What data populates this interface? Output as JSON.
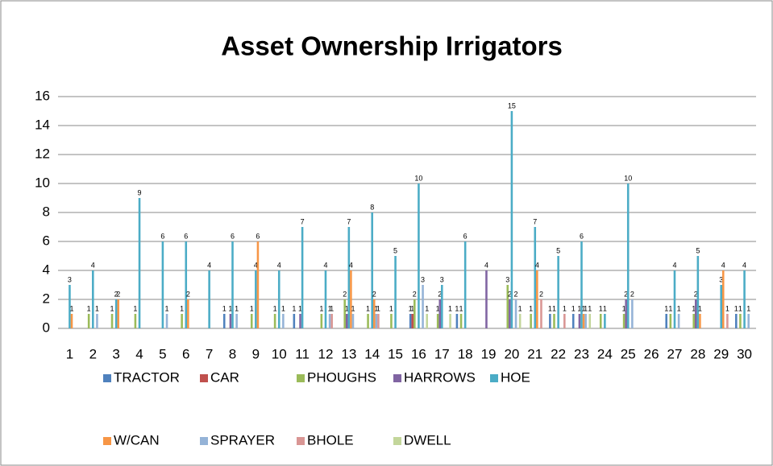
{
  "chart_data": {
    "type": "bar",
    "title": "Asset Ownership Irrigators",
    "categories": [
      "1",
      "2",
      "3",
      "4",
      "5",
      "6",
      "7",
      "8",
      "9",
      "10",
      "11",
      "12",
      "13",
      "14",
      "15",
      "16",
      "17",
      "18",
      "19",
      "20",
      "21",
      "22",
      "23",
      "24",
      "25",
      "26",
      "27",
      "28",
      "29",
      "30"
    ],
    "series": [
      {
        "name": "TRACTOR",
        "color": "#4f81bd",
        "values": [
          0,
          0,
          0,
          0,
          0,
          0,
          0,
          1,
          0,
          0,
          1,
          0,
          0,
          0,
          0,
          1,
          0,
          1,
          0,
          0,
          0,
          1,
          1,
          0,
          0,
          0,
          1,
          0,
          0,
          1
        ]
      },
      {
        "name": "CAR",
        "color": "#c0504d",
        "values": [
          0,
          0,
          0,
          0,
          0,
          0,
          0,
          0,
          0,
          0,
          0,
          0,
          0,
          0,
          0,
          1,
          0,
          0,
          0,
          0,
          0,
          0,
          0,
          0,
          0,
          0,
          0,
          0,
          0,
          0
        ]
      },
      {
        "name": "PHOUGHS",
        "color": "#9bbb59",
        "values": [
          0,
          1,
          1,
          1,
          0,
          1,
          0,
          0,
          1,
          1,
          0,
          1,
          2,
          1,
          1,
          2,
          1,
          1,
          0,
          3,
          1,
          1,
          0,
          1,
          1,
          0,
          1,
          1,
          0,
          1
        ]
      },
      {
        "name": "HARROWS",
        "color": "#8064a2",
        "values": [
          0,
          0,
          0,
          0,
          0,
          0,
          0,
          1,
          0,
          0,
          1,
          0,
          1,
          0,
          0,
          0,
          2,
          0,
          4,
          2,
          0,
          0,
          1,
          0,
          2,
          0,
          0,
          2,
          0,
          0
        ]
      },
      {
        "name": "HOE",
        "color": "#4bacc6",
        "values": [
          3,
          4,
          2,
          9,
          6,
          6,
          4,
          6,
          4,
          4,
          7,
          4,
          7,
          8,
          5,
          10,
          3,
          6,
          0,
          15,
          7,
          5,
          6,
          1,
          10,
          0,
          4,
          5,
          3,
          4
        ]
      },
      {
        "name": "W/CAN",
        "color": "#f79646",
        "values": [
          1,
          0,
          2,
          0,
          0,
          2,
          0,
          0,
          6,
          0,
          0,
          0,
          4,
          2,
          0,
          0,
          0,
          0,
          0,
          0,
          4,
          0,
          1,
          0,
          0,
          0,
          0,
          1,
          4,
          0
        ]
      },
      {
        "name": "SPRAYER",
        "color": "#95b3d7",
        "values": [
          0,
          1,
          0,
          0,
          1,
          0,
          0,
          1,
          0,
          1,
          0,
          1,
          1,
          1,
          0,
          3,
          0,
          0,
          0,
          2,
          0,
          0,
          1,
          0,
          2,
          0,
          1,
          0,
          0,
          1
        ]
      },
      {
        "name": "BHOLE",
        "color": "#d99694",
        "values": [
          0,
          0,
          0,
          0,
          0,
          0,
          0,
          0,
          0,
          0,
          0,
          1,
          0,
          1,
          0,
          0,
          0,
          0,
          0,
          0,
          2,
          1,
          0,
          0,
          0,
          0,
          0,
          0,
          1,
          0
        ]
      },
      {
        "name": "DWELL",
        "color": "#c3d69b",
        "values": [
          0,
          0,
          0,
          0,
          0,
          0,
          0,
          0,
          0,
          0,
          0,
          0,
          0,
          0,
          0,
          1,
          1,
          0,
          0,
          1,
          0,
          0,
          1,
          0,
          0,
          0,
          0,
          0,
          0,
          0
        ]
      }
    ],
    "ylim": [
      0,
      16
    ],
    "yticks": [
      0,
      2,
      4,
      6,
      8,
      10,
      12,
      14,
      16
    ],
    "grid": true
  }
}
